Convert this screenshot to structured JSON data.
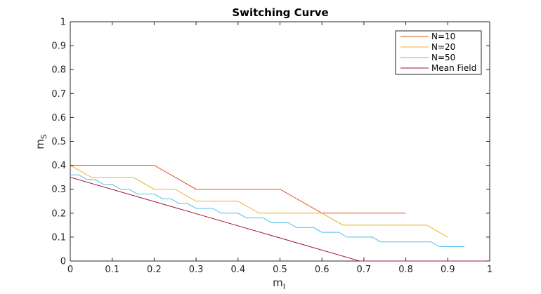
{
  "chart_data": {
    "type": "line",
    "title": "Switching Curve",
    "xlabel": {
      "main": "m",
      "sub": "I"
    },
    "ylabel": {
      "main": "m",
      "sub": "S"
    },
    "xlim": [
      0,
      1
    ],
    "ylim": [
      0,
      1
    ],
    "xticks": [
      "0",
      "0.1",
      "0.2",
      "0.3",
      "0.4",
      "0.5",
      "0.6",
      "0.7",
      "0.8",
      "0.9",
      "1"
    ],
    "yticks": [
      "0",
      "0.1",
      "0.2",
      "0.3",
      "0.4",
      "0.5",
      "0.6",
      "0.7",
      "0.8",
      "0.9",
      "1"
    ],
    "grid": false,
    "legend_position": "top-right",
    "series": [
      {
        "name": "N=10",
        "color": "#D95319",
        "x": [
          0,
          0.2,
          0.3,
          0.5,
          0.6,
          0.8
        ],
        "y": [
          0.4,
          0.4,
          0.3,
          0.3,
          0.2,
          0.2
        ]
      },
      {
        "name": "N=20",
        "color": "#EDB120",
        "x": [
          0,
          0.05,
          0.15,
          0.2,
          0.25,
          0.3,
          0.4,
          0.45,
          0.6,
          0.65,
          0.85,
          0.9
        ],
        "y": [
          0.4,
          0.35,
          0.35,
          0.3,
          0.3,
          0.25,
          0.25,
          0.2,
          0.2,
          0.15,
          0.15,
          0.1
        ]
      },
      {
        "name": "N=50",
        "color": "#4DBEEE",
        "x": [
          0,
          0.02,
          0.04,
          0.06,
          0.08,
          0.1,
          0.12,
          0.14,
          0.16,
          0.18,
          0.2,
          0.22,
          0.24,
          0.26,
          0.28,
          0.3,
          0.34,
          0.36,
          0.4,
          0.42,
          0.46,
          0.48,
          0.52,
          0.54,
          0.58,
          0.6,
          0.64,
          0.66,
          0.72,
          0.74,
          0.86,
          0.88,
          0.94
        ],
        "y": [
          0.36,
          0.36,
          0.34,
          0.34,
          0.32,
          0.32,
          0.3,
          0.3,
          0.28,
          0.28,
          0.28,
          0.26,
          0.26,
          0.24,
          0.24,
          0.22,
          0.22,
          0.2,
          0.2,
          0.18,
          0.18,
          0.16,
          0.16,
          0.14,
          0.14,
          0.12,
          0.12,
          0.1,
          0.1,
          0.08,
          0.08,
          0.06,
          0.06
        ]
      },
      {
        "name": "Mean Field",
        "color": "#A2142F",
        "x": [
          0,
          0.69,
          1.0
        ],
        "y": [
          0.35,
          0,
          0
        ]
      }
    ]
  }
}
